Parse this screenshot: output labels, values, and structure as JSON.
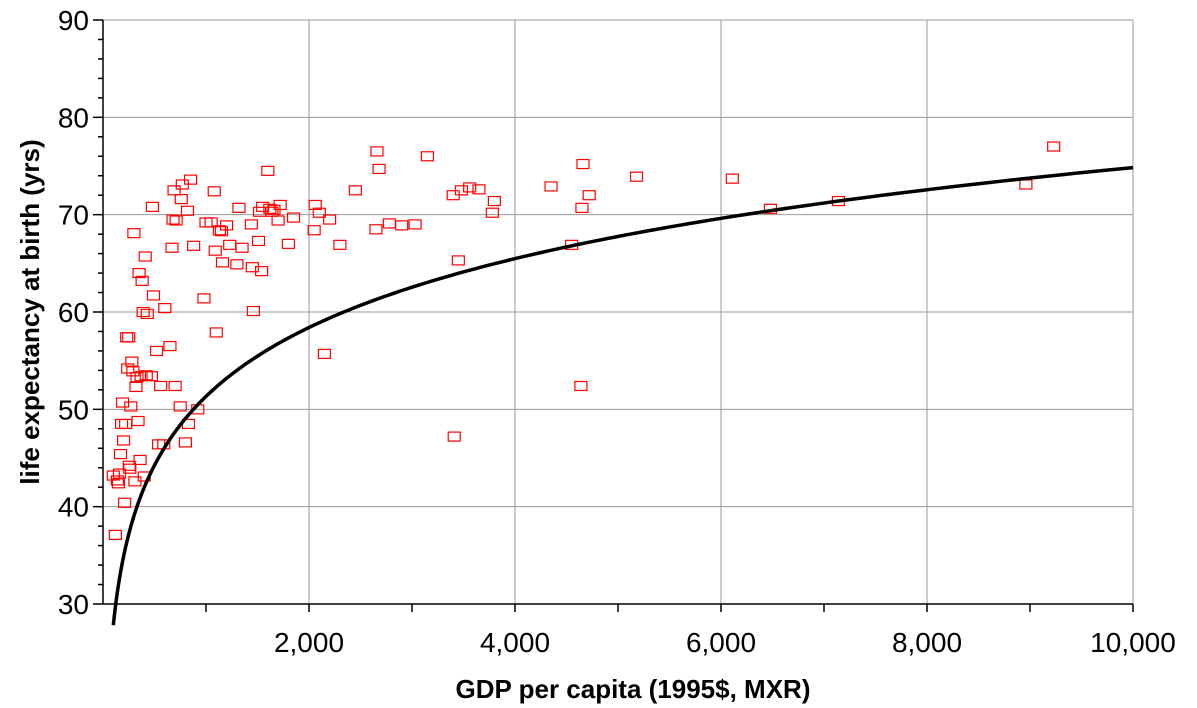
{
  "chart_data": {
    "type": "scatter",
    "title": "",
    "xlabel": "GDP per capita (1995$, MXR)",
    "ylabel": "life expectancy at birth (yrs)",
    "xlim": [
      0,
      10000
    ],
    "ylim": [
      30,
      90
    ],
    "x_ticks": [
      2000,
      4000,
      6000,
      8000,
      10000
    ],
    "x_tick_labels": [
      "2,000",
      "4,000",
      "6,000",
      "8,000",
      "10,000"
    ],
    "y_ticks": [
      30,
      40,
      50,
      60,
      70,
      80,
      90
    ],
    "y_tick_labels": [
      "30",
      "40",
      "50",
      "60",
      "70",
      "80",
      "90"
    ],
    "grid": true,
    "colors": {
      "marker": "#ff0000",
      "trend": "#000000",
      "grid": "#999999"
    },
    "trendline": {
      "type": "logarithmic",
      "a": 10.21,
      "b": -19.2,
      "x_range": [
        100,
        10000
      ]
    },
    "points": [
      [
        100,
        43.2
      ],
      [
        120,
        37.1
      ],
      [
        140,
        42.7
      ],
      [
        150,
        42.4
      ],
      [
        160,
        43.4
      ],
      [
        170,
        45.4
      ],
      [
        180,
        48.5
      ],
      [
        190,
        50.7
      ],
      [
        200,
        46.8
      ],
      [
        210,
        40.4
      ],
      [
        220,
        48.5
      ],
      [
        230,
        57.4
      ],
      [
        240,
        54.2
      ],
      [
        250,
        57.4
      ],
      [
        255,
        44.2
      ],
      [
        260,
        43.9
      ],
      [
        270,
        50.3
      ],
      [
        280,
        54.9
      ],
      [
        290,
        53.9
      ],
      [
        300,
        68.1
      ],
      [
        310,
        42.6
      ],
      [
        320,
        52.3
      ],
      [
        330,
        53.3
      ],
      [
        340,
        48.8
      ],
      [
        350,
        64.0
      ],
      [
        360,
        44.8
      ],
      [
        370,
        53.4
      ],
      [
        380,
        63.2
      ],
      [
        390,
        60.0
      ],
      [
        400,
        43.1
      ],
      [
        410,
        65.7
      ],
      [
        420,
        53.5
      ],
      [
        430,
        59.8
      ],
      [
        470,
        53.4
      ],
      [
        480,
        70.8
      ],
      [
        490,
        61.7
      ],
      [
        520,
        56.0
      ],
      [
        540,
        46.4
      ],
      [
        560,
        52.4
      ],
      [
        590,
        46.4
      ],
      [
        600,
        60.4
      ],
      [
        650,
        56.5
      ],
      [
        670,
        66.6
      ],
      [
        680,
        69.5
      ],
      [
        690,
        72.5
      ],
      [
        700,
        52.4
      ],
      [
        710,
        69.4
      ],
      [
        750,
        50.3
      ],
      [
        760,
        71.6
      ],
      [
        770,
        73.1
      ],
      [
        800,
        46.6
      ],
      [
        820,
        70.4
      ],
      [
        830,
        48.5
      ],
      [
        850,
        73.6
      ],
      [
        880,
        66.8
      ],
      [
        920,
        50.0
      ],
      [
        980,
        61.4
      ],
      [
        1000,
        69.2
      ],
      [
        1050,
        69.2
      ],
      [
        1080,
        72.4
      ],
      [
        1090,
        66.3
      ],
      [
        1100,
        57.9
      ],
      [
        1130,
        68.4
      ],
      [
        1150,
        68.3
      ],
      [
        1160,
        65.1
      ],
      [
        1200,
        68.9
      ],
      [
        1230,
        66.9
      ],
      [
        1300,
        64.9
      ],
      [
        1320,
        70.7
      ],
      [
        1350,
        66.6
      ],
      [
        1440,
        69.0
      ],
      [
        1450,
        64.6
      ],
      [
        1460,
        60.1
      ],
      [
        1510,
        67.3
      ],
      [
        1520,
        70.3
      ],
      [
        1540,
        64.2
      ],
      [
        1550,
        70.8
      ],
      [
        1600,
        74.5
      ],
      [
        1620,
        70.6
      ],
      [
        1640,
        70.3
      ],
      [
        1660,
        70.5
      ],
      [
        1700,
        69.4
      ],
      [
        1720,
        71.0
      ],
      [
        1800,
        67.0
      ],
      [
        1850,
        69.7
      ],
      [
        2050,
        68.4
      ],
      [
        2060,
        71.0
      ],
      [
        2100,
        70.2
      ],
      [
        2150,
        55.7
      ],
      [
        2200,
        69.5
      ],
      [
        2300,
        66.9
      ],
      [
        2450,
        72.5
      ],
      [
        2650,
        68.5
      ],
      [
        2660,
        76.5
      ],
      [
        2680,
        74.7
      ],
      [
        2780,
        69.1
      ],
      [
        2900,
        68.9
      ],
      [
        3030,
        69.0
      ],
      [
        3150,
        76.0
      ],
      [
        3400,
        72.0
      ],
      [
        3410,
        47.2
      ],
      [
        3450,
        65.3
      ],
      [
        3480,
        72.5
      ],
      [
        3560,
        72.8
      ],
      [
        3650,
        72.6
      ],
      [
        3780,
        70.2
      ],
      [
        3800,
        71.4
      ],
      [
        4350,
        72.9
      ],
      [
        4550,
        66.9
      ],
      [
        4640,
        52.4
      ],
      [
        4650,
        70.7
      ],
      [
        4660,
        75.2
      ],
      [
        4720,
        72.0
      ],
      [
        5180,
        73.9
      ],
      [
        6110,
        73.7
      ],
      [
        6480,
        70.6
      ],
      [
        7140,
        71.4
      ],
      [
        8960,
        73.1
      ],
      [
        9230,
        77.0
      ]
    ]
  }
}
